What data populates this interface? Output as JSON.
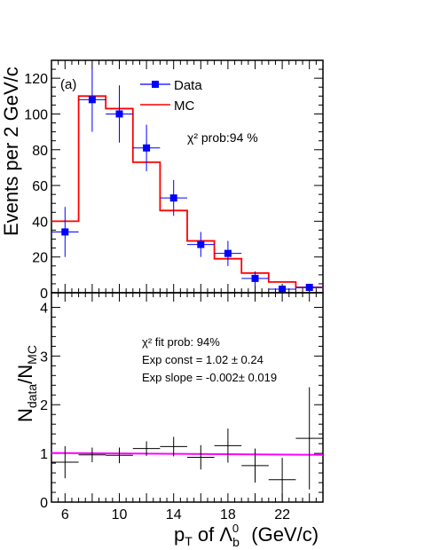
{
  "chart_data": [
    {
      "type": "bar",
      "panel_label": "(a)",
      "ylabel": "Events per 2 GeV/c",
      "ylim": [
        0,
        130
      ],
      "yticks": [
        0,
        20,
        40,
        60,
        80,
        100,
        120
      ],
      "xlim": [
        5,
        25
      ],
      "bin_edges": [
        5,
        7,
        9,
        11,
        13,
        15,
        17,
        19,
        21,
        23,
        25
      ],
      "legend": {
        "placement": "top-center",
        "entries": [
          {
            "name": "Data",
            "color": "#0000ff",
            "marker": "filled-square"
          },
          {
            "name": "MC",
            "color": "#ff0000",
            "marker": "line"
          }
        ]
      },
      "annotation": "χ² prob:94 %",
      "series": [
        {
          "name": "Data",
          "type": "scatter",
          "color": "#0000ff",
          "x": [
            6,
            8,
            10,
            12,
            14,
            16,
            18,
            20,
            22,
            24
          ],
          "y": [
            34,
            108,
            100,
            81,
            53,
            27,
            22,
            8,
            2,
            3
          ],
          "yerr": [
            14,
            18,
            16,
            13,
            10,
            7,
            7,
            4,
            2,
            2
          ],
          "xerr": 1
        },
        {
          "name": "MC",
          "type": "step",
          "color": "#ff0000",
          "values": [
            40,
            110,
            103,
            73,
            46,
            29,
            19,
            11,
            6,
            3
          ]
        }
      ]
    },
    {
      "type": "scatter",
      "ylabel_main": "N",
      "ylabel_num": "data",
      "ylabel_den": "MC",
      "xlabel_main": "p",
      "xlabel_sub": "T",
      "xlabel_mid": " of Λ",
      "xlabel_b": "b",
      "xlabel_0": "0",
      "xlabel_unit": "(GeV/c)",
      "xlim": [
        5,
        25
      ],
      "xticks": [
        6,
        10,
        14,
        18,
        22
      ],
      "ylim": [
        0,
        4.3
      ],
      "yticks": [
        0,
        1,
        2,
        3,
        4
      ],
      "annotations": [
        "χ² fit prob: 94%",
        "Exp const = 1.02 ± 0.24",
        "Exp slope = -0.002± 0.019"
      ],
      "fit": {
        "color": "#ff00ff",
        "const": 1.02,
        "slope": -0.002
      },
      "series": [
        {
          "name": "ratio",
          "color": "#000000",
          "x": [
            6,
            8,
            10,
            12,
            14,
            16,
            18,
            20,
            22,
            24
          ],
          "y": [
            0.82,
            0.97,
            0.96,
            1.1,
            1.14,
            0.92,
            1.16,
            0.75,
            0.46,
            1.31
          ],
          "yerr": [
            0.33,
            0.15,
            0.16,
            0.15,
            0.2,
            0.25,
            0.35,
            0.35,
            0.45,
            1.05
          ],
          "xerr": 1
        }
      ]
    }
  ]
}
